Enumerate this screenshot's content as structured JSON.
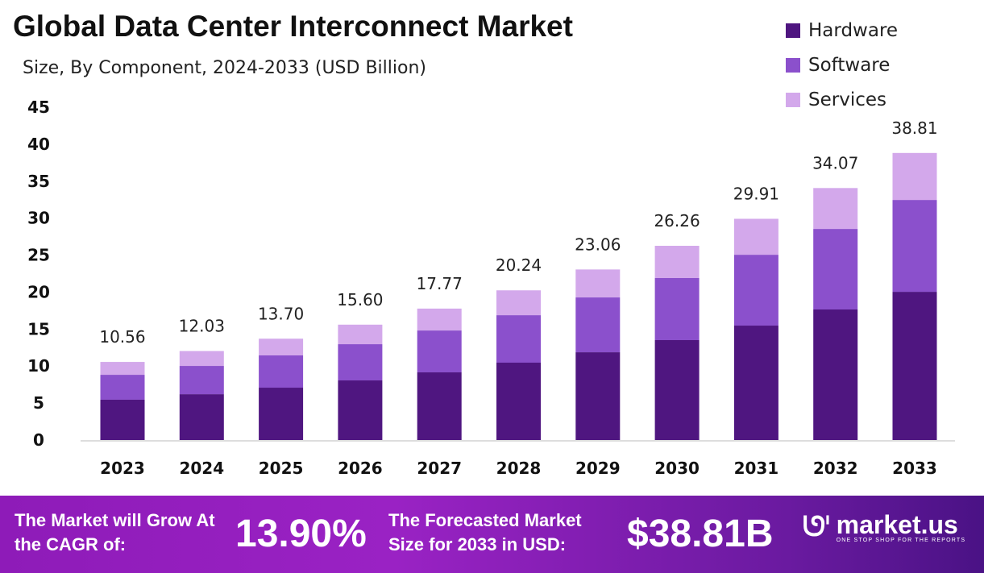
{
  "chart_data": {
    "type": "bar",
    "stacked": true,
    "title": "Global Data Center Interconnect Market",
    "subtitle": "Size, By Component, 2024-2033 (USD Billion)",
    "categories": [
      "2023",
      "2024",
      "2025",
      "2026",
      "2027",
      "2028",
      "2029",
      "2030",
      "2031",
      "2032",
      "2033"
    ],
    "series": [
      {
        "name": "Hardware",
        "color": "#4f1680",
        "values": [
          5.45,
          6.2,
          7.08,
          8.06,
          9.15,
          10.46,
          11.87,
          13.51,
          15.47,
          17.65,
          20.04
        ]
      },
      {
        "name": "Software",
        "color": "#8b50cc",
        "values": [
          3.37,
          3.82,
          4.36,
          4.9,
          5.66,
          6.42,
          7.41,
          8.39,
          9.58,
          10.89,
          12.42
        ]
      },
      {
        "name": "Services",
        "color": "#d3a8eb",
        "values": [
          1.74,
          2.01,
          2.26,
          2.64,
          2.96,
          3.36,
          3.78,
          4.36,
          4.86,
          5.53,
          6.35
        ]
      }
    ],
    "totals": [
      "10.56",
      "12.03",
      "13.70",
      "15.60",
      "17.77",
      "20.24",
      "23.06",
      "26.26",
      "29.91",
      "34.07",
      "38.81"
    ],
    "yticks": [
      "0",
      "5",
      "10",
      "15",
      "20",
      "25",
      "30",
      "35",
      "40",
      "45"
    ],
    "ylim": [
      0,
      45
    ],
    "grid": false,
    "legend": "top-right"
  },
  "footer": {
    "cagr_label": "The Market will Grow At the CAGR of:",
    "cagr_value": "13.90%",
    "forecast_label": "The Forecasted Market Size for 2033 in USD:",
    "forecast_value": "$38.81B",
    "logo_name": "market.us",
    "logo_tagline": "ONE STOP SHOP FOR THE REPORTS"
  }
}
